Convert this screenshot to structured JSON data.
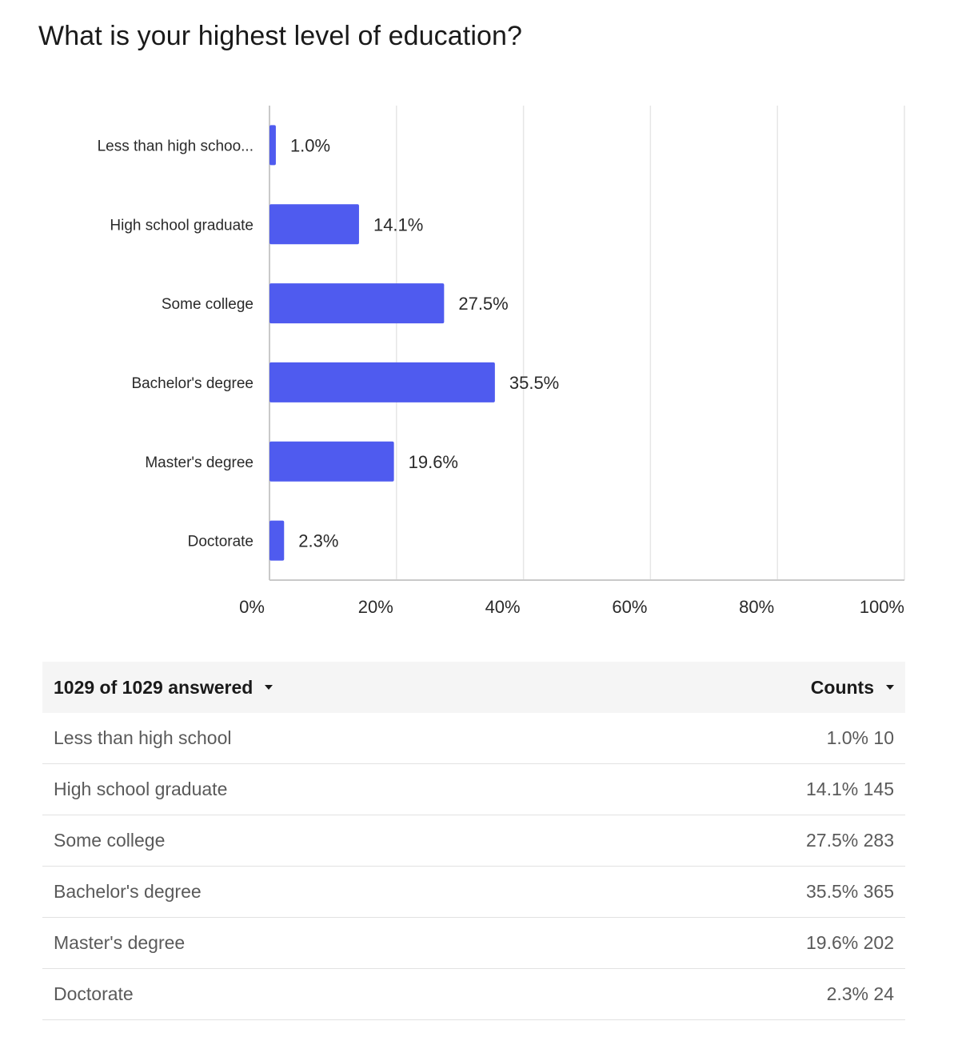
{
  "title": "What is your highest level of education?",
  "chart_data": {
    "type": "bar",
    "orientation": "horizontal",
    "categories": [
      "Less than high schoo...",
      "High school graduate",
      "Some college",
      "Bachelor's degree",
      "Master's degree",
      "Doctorate"
    ],
    "values": [
      1.0,
      14.1,
      27.5,
      35.5,
      19.6,
      2.3
    ],
    "data_labels": [
      "1.0%",
      "14.1%",
      "27.5%",
      "35.5%",
      "19.6%",
      "2.3%"
    ],
    "xlim": [
      0,
      100
    ],
    "x_ticks": [
      0,
      20,
      40,
      60,
      80,
      100
    ],
    "x_tick_labels": [
      "0%",
      "20%",
      "40%",
      "60%",
      "80%",
      "100%"
    ],
    "grid": true,
    "bar_color": "#4f5bef"
  },
  "table": {
    "answered_label": "1029 of 1029 answered",
    "counts_label": "Counts",
    "rows": [
      {
        "label": "Less than high school",
        "percent": "1.0%",
        "count": "10"
      },
      {
        "label": "High school graduate",
        "percent": "14.1%",
        "count": "145"
      },
      {
        "label": "Some college",
        "percent": "27.5%",
        "count": "283"
      },
      {
        "label": "Bachelor's degree",
        "percent": "35.5%",
        "count": "365"
      },
      {
        "label": "Master's degree",
        "percent": "19.6%",
        "count": "202"
      },
      {
        "label": "Doctorate",
        "percent": "2.3%",
        "count": "24"
      }
    ]
  }
}
